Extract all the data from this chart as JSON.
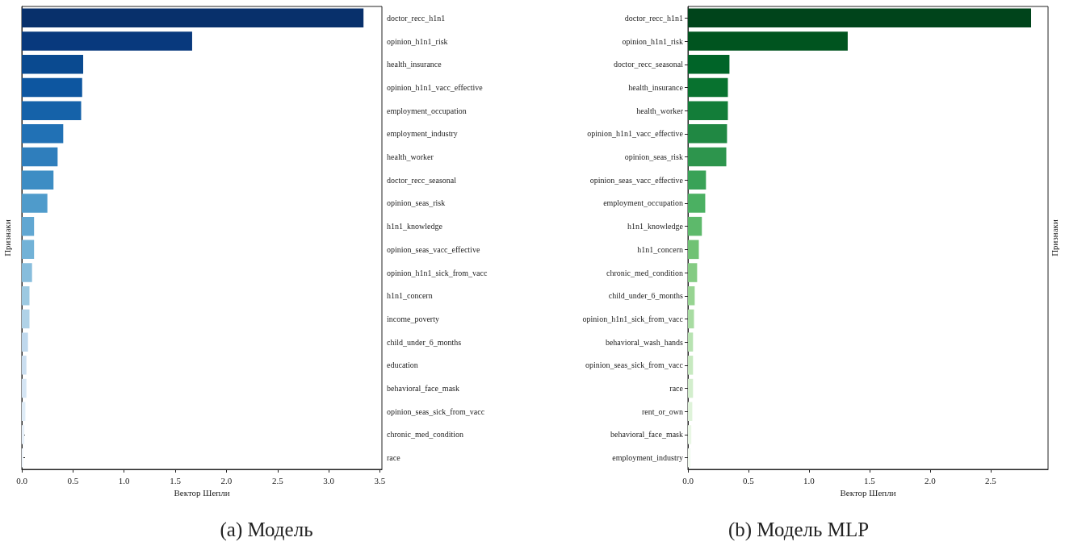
{
  "chart_data": [
    {
      "type": "bar",
      "orientation": "horizontal",
      "title": "(a) Модель",
      "xlabel": "Вектор Шепли",
      "ylabel": "Признаки",
      "categories": [
        "doctor_recc_h1n1",
        "opinion_h1n1_risk",
        "health_insurance",
        "opinion_h1n1_vacc_effective",
        "employment_occupation",
        "employment_industry",
        "health_worker",
        "doctor_recc_seasonal",
        "opinion_seas_risk",
        "h1n1_knowledge",
        "opinion_seas_vacc_effective",
        "opinion_h1n1_sick_from_vacc",
        "h1n1_concern",
        "income_poverty",
        "child_under_6_months",
        "education",
        "behavioral_face_mask",
        "opinion_seas_sick_from_vacc",
        "chronic_med_condition",
        "race"
      ],
      "values": [
        3.34,
        1.665,
        0.6,
        0.59,
        0.58,
        0.405,
        0.35,
        0.31,
        0.25,
        0.12,
        0.12,
        0.1,
        0.075,
        0.075,
        0.06,
        0.045,
        0.045,
        0.035,
        0.025,
        0.015
      ],
      "colors": [
        "#08306b",
        "#08397d",
        "#0a4a90",
        "#0d56a0",
        "#1562a9",
        "#2171b5",
        "#2f7ebc",
        "#3d8dc4",
        "#4f9bcb",
        "#61a7d2",
        "#72b2d7",
        "#87bddc",
        "#9cc9e1",
        "#b0d2e7",
        "#bfd8ed",
        "#cadef0",
        "#d5e5f4",
        "#dfecf7",
        "#e8f1fa",
        "#f0f6fc"
      ],
      "xlim": [
        0,
        3.52
      ],
      "xticks": [
        {
          "value": 0,
          "label": "0.0"
        },
        0.5,
        {
          "value": 1,
          "label": "1.0"
        },
        1.5,
        {
          "value": 2,
          "label": "2.0"
        },
        2.5,
        {
          "value": 3,
          "label": "3.0"
        },
        3.5
      ]
    },
    {
      "type": "bar",
      "orientation": "horizontal",
      "title": "(b) Модель MLP",
      "xlabel": "Вектор Шепли",
      "ylabel": "Признаки",
      "categories": [
        "doctor_recc_h1n1",
        "opinion_h1n1_risk",
        "doctor_recc_seasonal",
        "health_insurance",
        "health_worker",
        "opinion_h1n1_vacc_effective",
        "opinion_seas_risk",
        "opinion_seas_vacc_effective",
        "employment_occupation",
        "h1n1_knowledge",
        "h1n1_concern",
        "chronic_med_condition",
        "child_under_6_months",
        "opinion_h1n1_sick_from_vacc",
        "behavioral_wash_hands",
        "opinion_seas_sick_from_vacc",
        "race",
        "rent_or_own",
        "behavioral_face_mask",
        "employment_industry"
      ],
      "values": [
        2.835,
        1.32,
        0.343,
        0.33,
        0.33,
        0.323,
        0.317,
        0.149,
        0.143,
        0.115,
        0.09,
        0.076,
        0.056,
        0.05,
        0.042,
        0.042,
        0.042,
        0.036,
        0.028,
        0.022
      ],
      "colors": [
        "#00441b",
        "#00541f",
        "#006428",
        "#08722f",
        "#137d39",
        "#208843",
        "#2d954d",
        "#39a257",
        "#4bb062",
        "#5db96b",
        "#70c274",
        "#84cb83",
        "#97d492",
        "#a8dca2",
        "#b8e3b2",
        "#c7e9c0",
        "#d3eecd",
        "#dff3da",
        "#e9f7e5",
        "#f2faf0"
      ],
      "xlim": [
        0,
        2.975
      ],
      "xticks": [
        {
          "value": 0,
          "label": "0.0"
        },
        0.5,
        {
          "value": 1,
          "label": "1.0"
        },
        1.5,
        {
          "value": 2,
          "label": "2.0"
        },
        2.5
      ]
    }
  ]
}
